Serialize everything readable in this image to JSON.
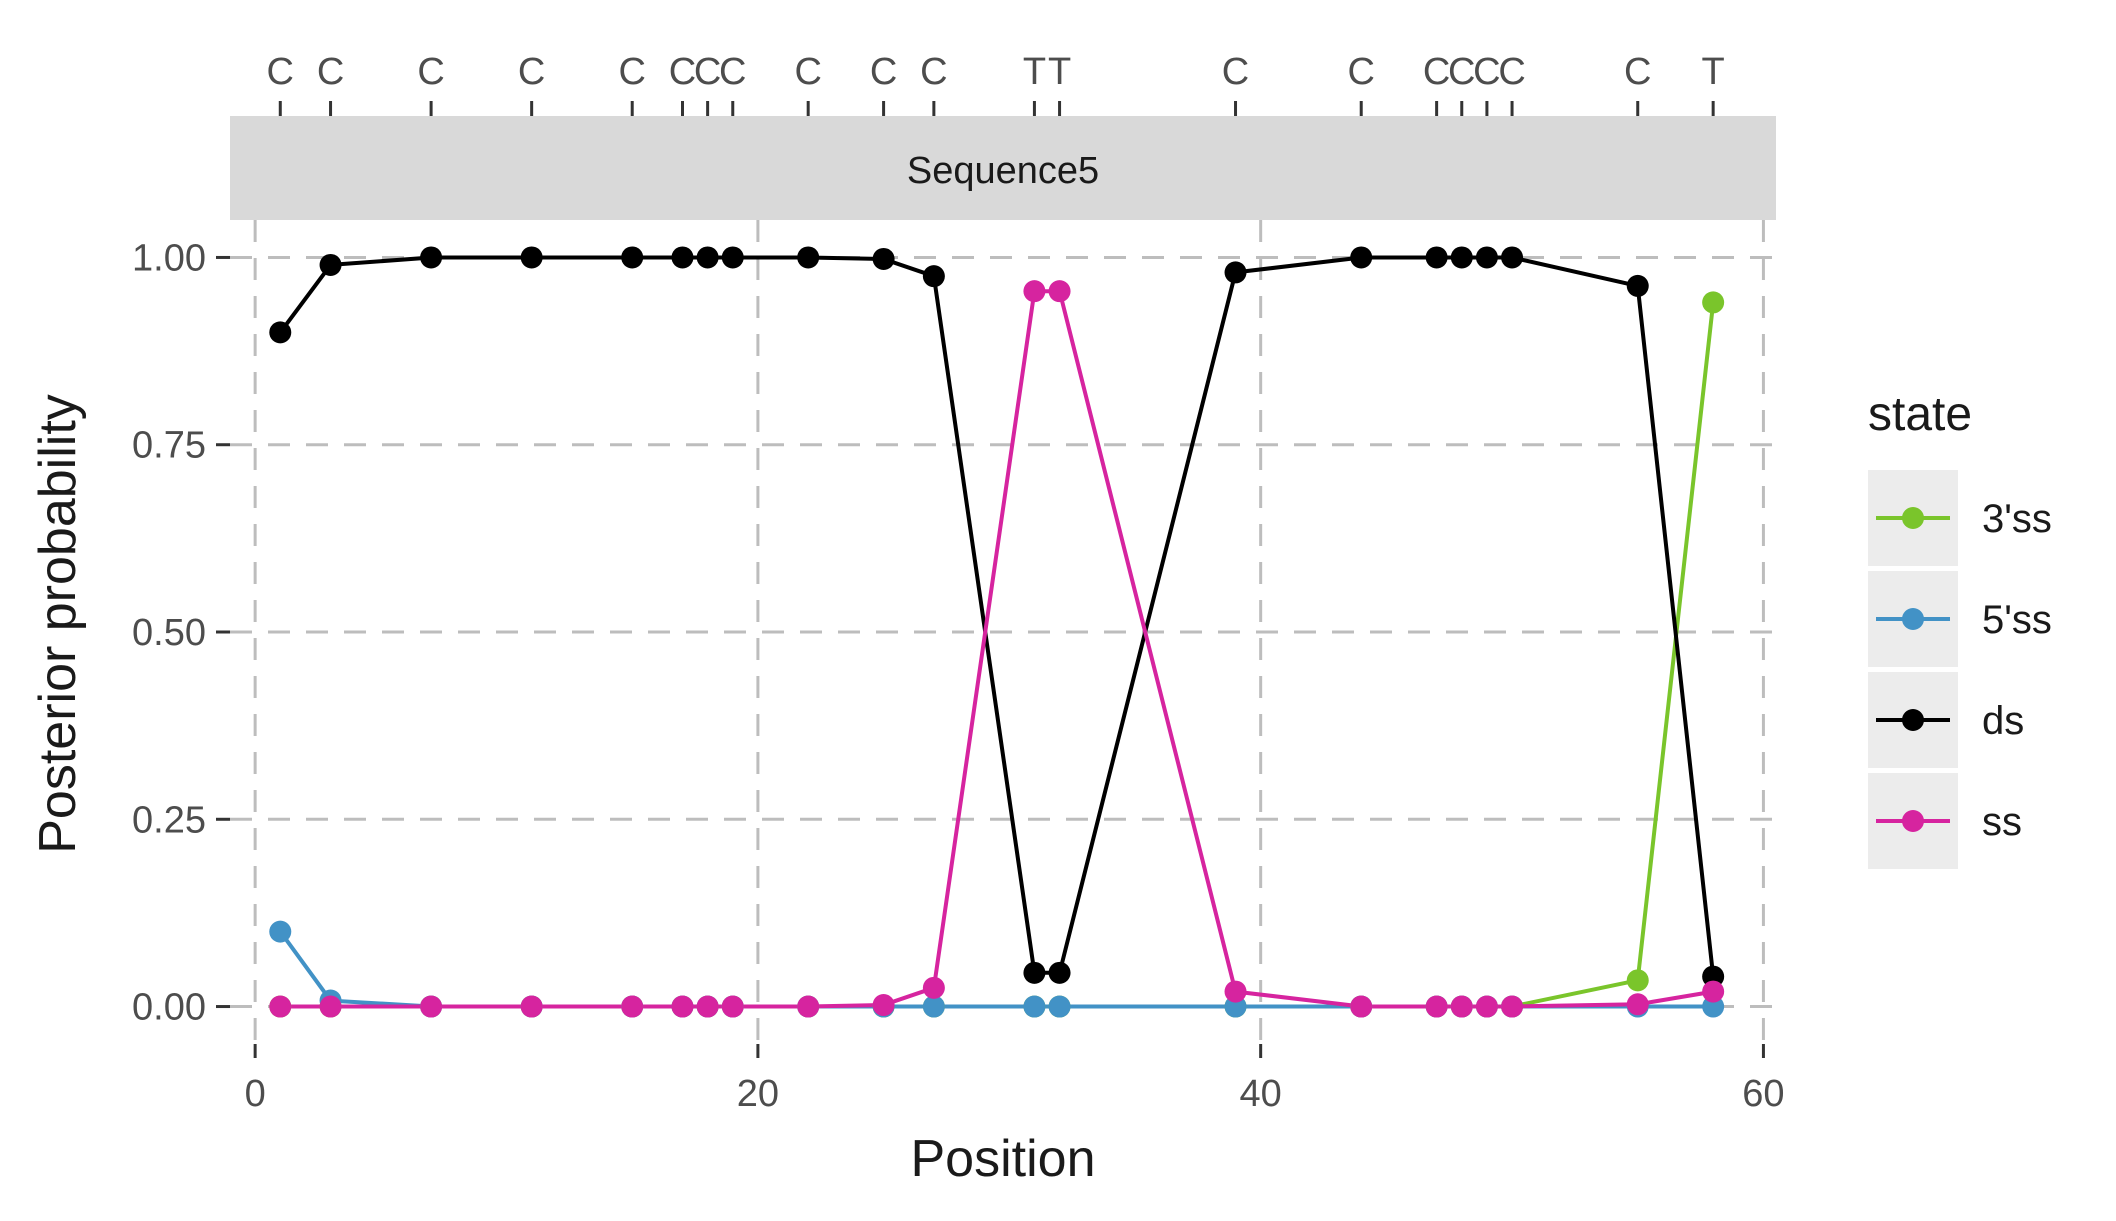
{
  "chart_data": {
    "type": "line",
    "facet_label": "Sequence5",
    "xlabel": "Position",
    "ylabel": "Posterior probability",
    "xlim": [
      -1,
      60.5
    ],
    "ylim": [
      -0.05,
      1.05
    ],
    "x_ticks": [
      0,
      20,
      40,
      60
    ],
    "y_ticks": [
      0,
      0.25,
      0.5,
      0.75,
      1.0
    ],
    "y_tick_labels": [
      "0.00",
      "0.25",
      "0.50",
      "0.75",
      "1.00"
    ],
    "grid": true,
    "legend_position": "right",
    "legend_title": "state",
    "top_labels": [
      {
        "x": 1,
        "label": "C"
      },
      {
        "x": 3,
        "label": "C"
      },
      {
        "x": 7,
        "label": "C"
      },
      {
        "x": 11,
        "label": "C"
      },
      {
        "x": 15,
        "label": "C"
      },
      {
        "x": 17,
        "label": "C"
      },
      {
        "x": 18,
        "label": "C"
      },
      {
        "x": 19,
        "label": "C"
      },
      {
        "x": 22,
        "label": "C"
      },
      {
        "x": 25,
        "label": "C"
      },
      {
        "x": 27,
        "label": "C"
      },
      {
        "x": 31,
        "label": "T"
      },
      {
        "x": 32,
        "label": "T"
      },
      {
        "x": 39,
        "label": "C"
      },
      {
        "x": 44,
        "label": "C"
      },
      {
        "x": 47,
        "label": "C"
      },
      {
        "x": 48,
        "label": "C"
      },
      {
        "x": 49,
        "label": "C"
      },
      {
        "x": 50,
        "label": "C"
      },
      {
        "x": 55,
        "label": "C"
      },
      {
        "x": 58,
        "label": "T"
      }
    ],
    "x": [
      1,
      3,
      7,
      11,
      15,
      17,
      18,
      19,
      22,
      25,
      27,
      31,
      32,
      39,
      44,
      47,
      48,
      49,
      50,
      55,
      58
    ],
    "series": [
      {
        "name": "3'ss",
        "color": "#7ac52b",
        "values": [
          0,
          0,
          0,
          0,
          0,
          0,
          0,
          0,
          0,
          0,
          0,
          0,
          0,
          0,
          0,
          0,
          0,
          0,
          0,
          0.035,
          0.94
        ]
      },
      {
        "name": "5'ss",
        "color": "#4292c6",
        "values": [
          0.1,
          0.008,
          0,
          0,
          0,
          0,
          0,
          0,
          0,
          0,
          0,
          0,
          0,
          0,
          0,
          0,
          0,
          0,
          0,
          0,
          0
        ]
      },
      {
        "name": "ds",
        "color": "#000000",
        "values": [
          0.9,
          0.99,
          1.0,
          1.0,
          1.0,
          1.0,
          1.0,
          1.0,
          1.0,
          0.998,
          0.975,
          0.045,
          0.045,
          0.98,
          1.0,
          1.0,
          1.0,
          1.0,
          1.0,
          0.962,
          0.04
        ]
      },
      {
        "name": "ss",
        "color": "#d6249f",
        "values": [
          0,
          0,
          0,
          0,
          0,
          0,
          0,
          0,
          0,
          0.002,
          0.025,
          0.955,
          0.955,
          0.02,
          0,
          0,
          0,
          0,
          0,
          0.003,
          0.02
        ]
      }
    ]
  }
}
